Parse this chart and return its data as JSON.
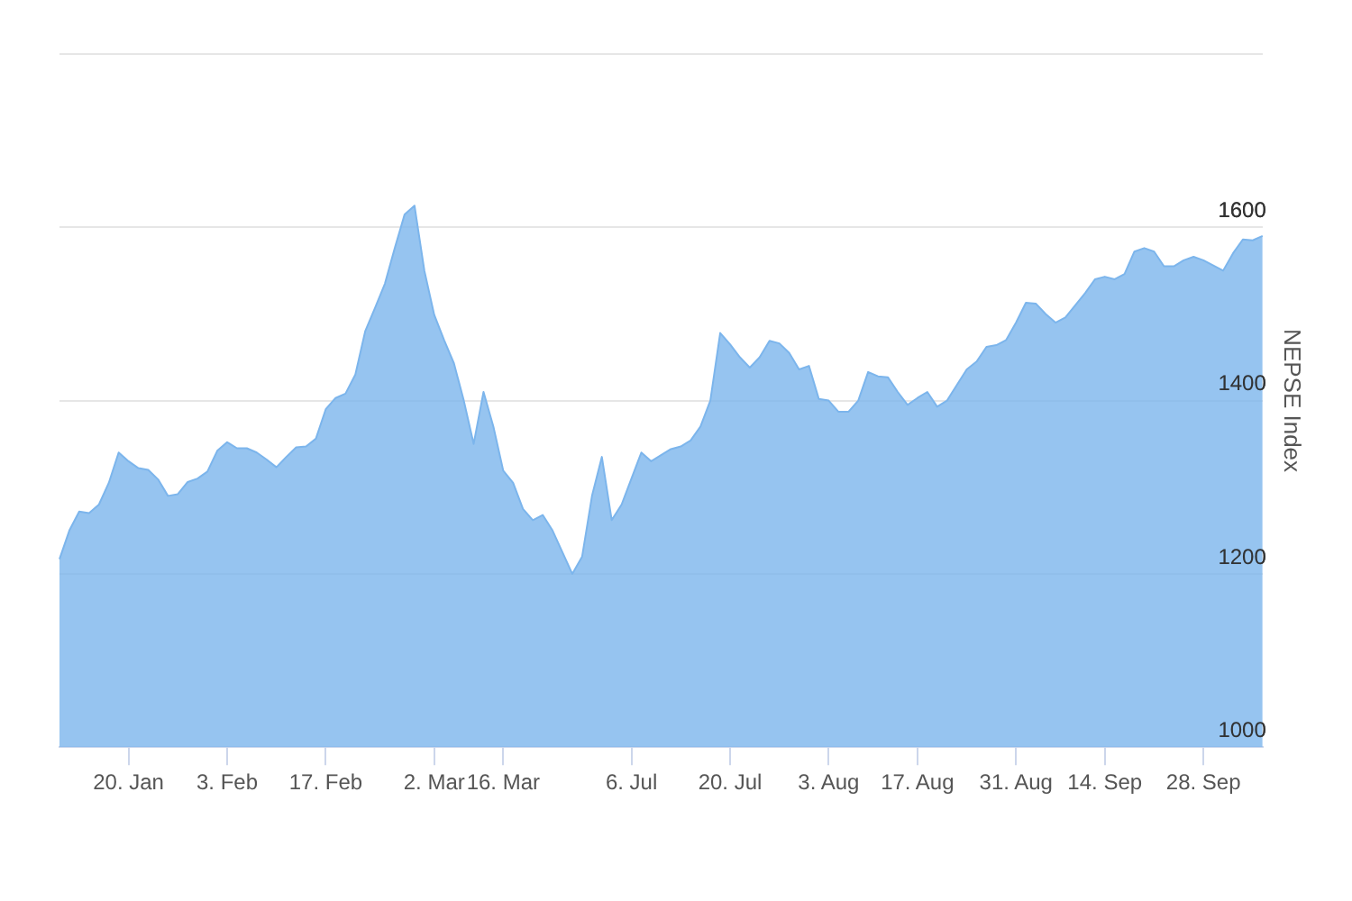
{
  "chart_data": {
    "type": "area",
    "ylabel": "NEPSE Index",
    "categories": [
      null,
      null,
      null,
      null,
      null,
      null,
      null,
      "20. Jan",
      null,
      null,
      null,
      null,
      null,
      null,
      null,
      null,
      null,
      "3. Feb",
      null,
      null,
      null,
      null,
      null,
      null,
      null,
      null,
      null,
      "17. Feb",
      null,
      null,
      null,
      null,
      null,
      null,
      null,
      null,
      null,
      null,
      "2. Mar",
      null,
      null,
      null,
      null,
      null,
      null,
      "16. Mar",
      null,
      null,
      null,
      null,
      null,
      null,
      null,
      null,
      null,
      null,
      null,
      null,
      "6. Jul",
      null,
      null,
      null,
      null,
      null,
      null,
      null,
      null,
      null,
      "20. Jul",
      null,
      null,
      null,
      null,
      null,
      null,
      null,
      null,
      null,
      "3. Aug",
      null,
      null,
      null,
      null,
      null,
      null,
      null,
      null,
      "17. Aug",
      null,
      null,
      null,
      null,
      null,
      null,
      null,
      null,
      null,
      "31. Aug",
      null,
      null,
      null,
      null,
      null,
      null,
      null,
      null,
      "14. Sep",
      null,
      null,
      null,
      null,
      null,
      null,
      null,
      null,
      null,
      "28. Sep",
      null,
      null,
      null,
      null,
      null,
      null
    ],
    "series": [
      {
        "color": "#7cb5ec",
        "values": [
          1217,
          1250,
          1272,
          1270,
          1280,
          1305,
          1340,
          1330,
          1322,
          1320,
          1309,
          1290,
          1292,
          1306,
          1310,
          1318,
          1342,
          1352,
          1345,
          1345,
          1340,
          1332,
          1323,
          1335,
          1346,
          1347,
          1356,
          1390,
          1403,
          1408,
          1430,
          1480,
          1507,
          1535,
          1576,
          1615,
          1625,
          1550,
          1499,
          1470,
          1443,
          1400,
          1350,
          1410,
          1370,
          1319,
          1305,
          1275,
          1262,
          1268,
          1250,
          1225,
          1200,
          1220,
          1290,
          1335,
          1262,
          1280,
          1310,
          1340,
          1330,
          1337,
          1344,
          1347,
          1354,
          1370,
          1400,
          1478,
          1465,
          1450,
          1438,
          1450,
          1469,
          1466,
          1455,
          1436,
          1440,
          1402,
          1400,
          1387,
          1387,
          1400,
          1433,
          1428,
          1427,
          1410,
          1395,
          1403,
          1410,
          1393,
          1400,
          1418,
          1436,
          1445,
          1462,
          1464,
          1470,
          1490,
          1513,
          1512,
          1500,
          1490,
          1496,
          1510,
          1524,
          1540,
          1543,
          1540,
          1546,
          1572,
          1576,
          1572,
          1555,
          1555,
          1562,
          1566,
          1562,
          1556,
          1550,
          1570,
          1586,
          1585,
          1590
        ]
      }
    ],
    "ylim": [
      1000,
      1800
    ],
    "yticks": [
      1000,
      1200,
      1400,
      1600,
      {
        "value": 1800,
        "label": null
      }
    ],
    "grid": "y"
  }
}
